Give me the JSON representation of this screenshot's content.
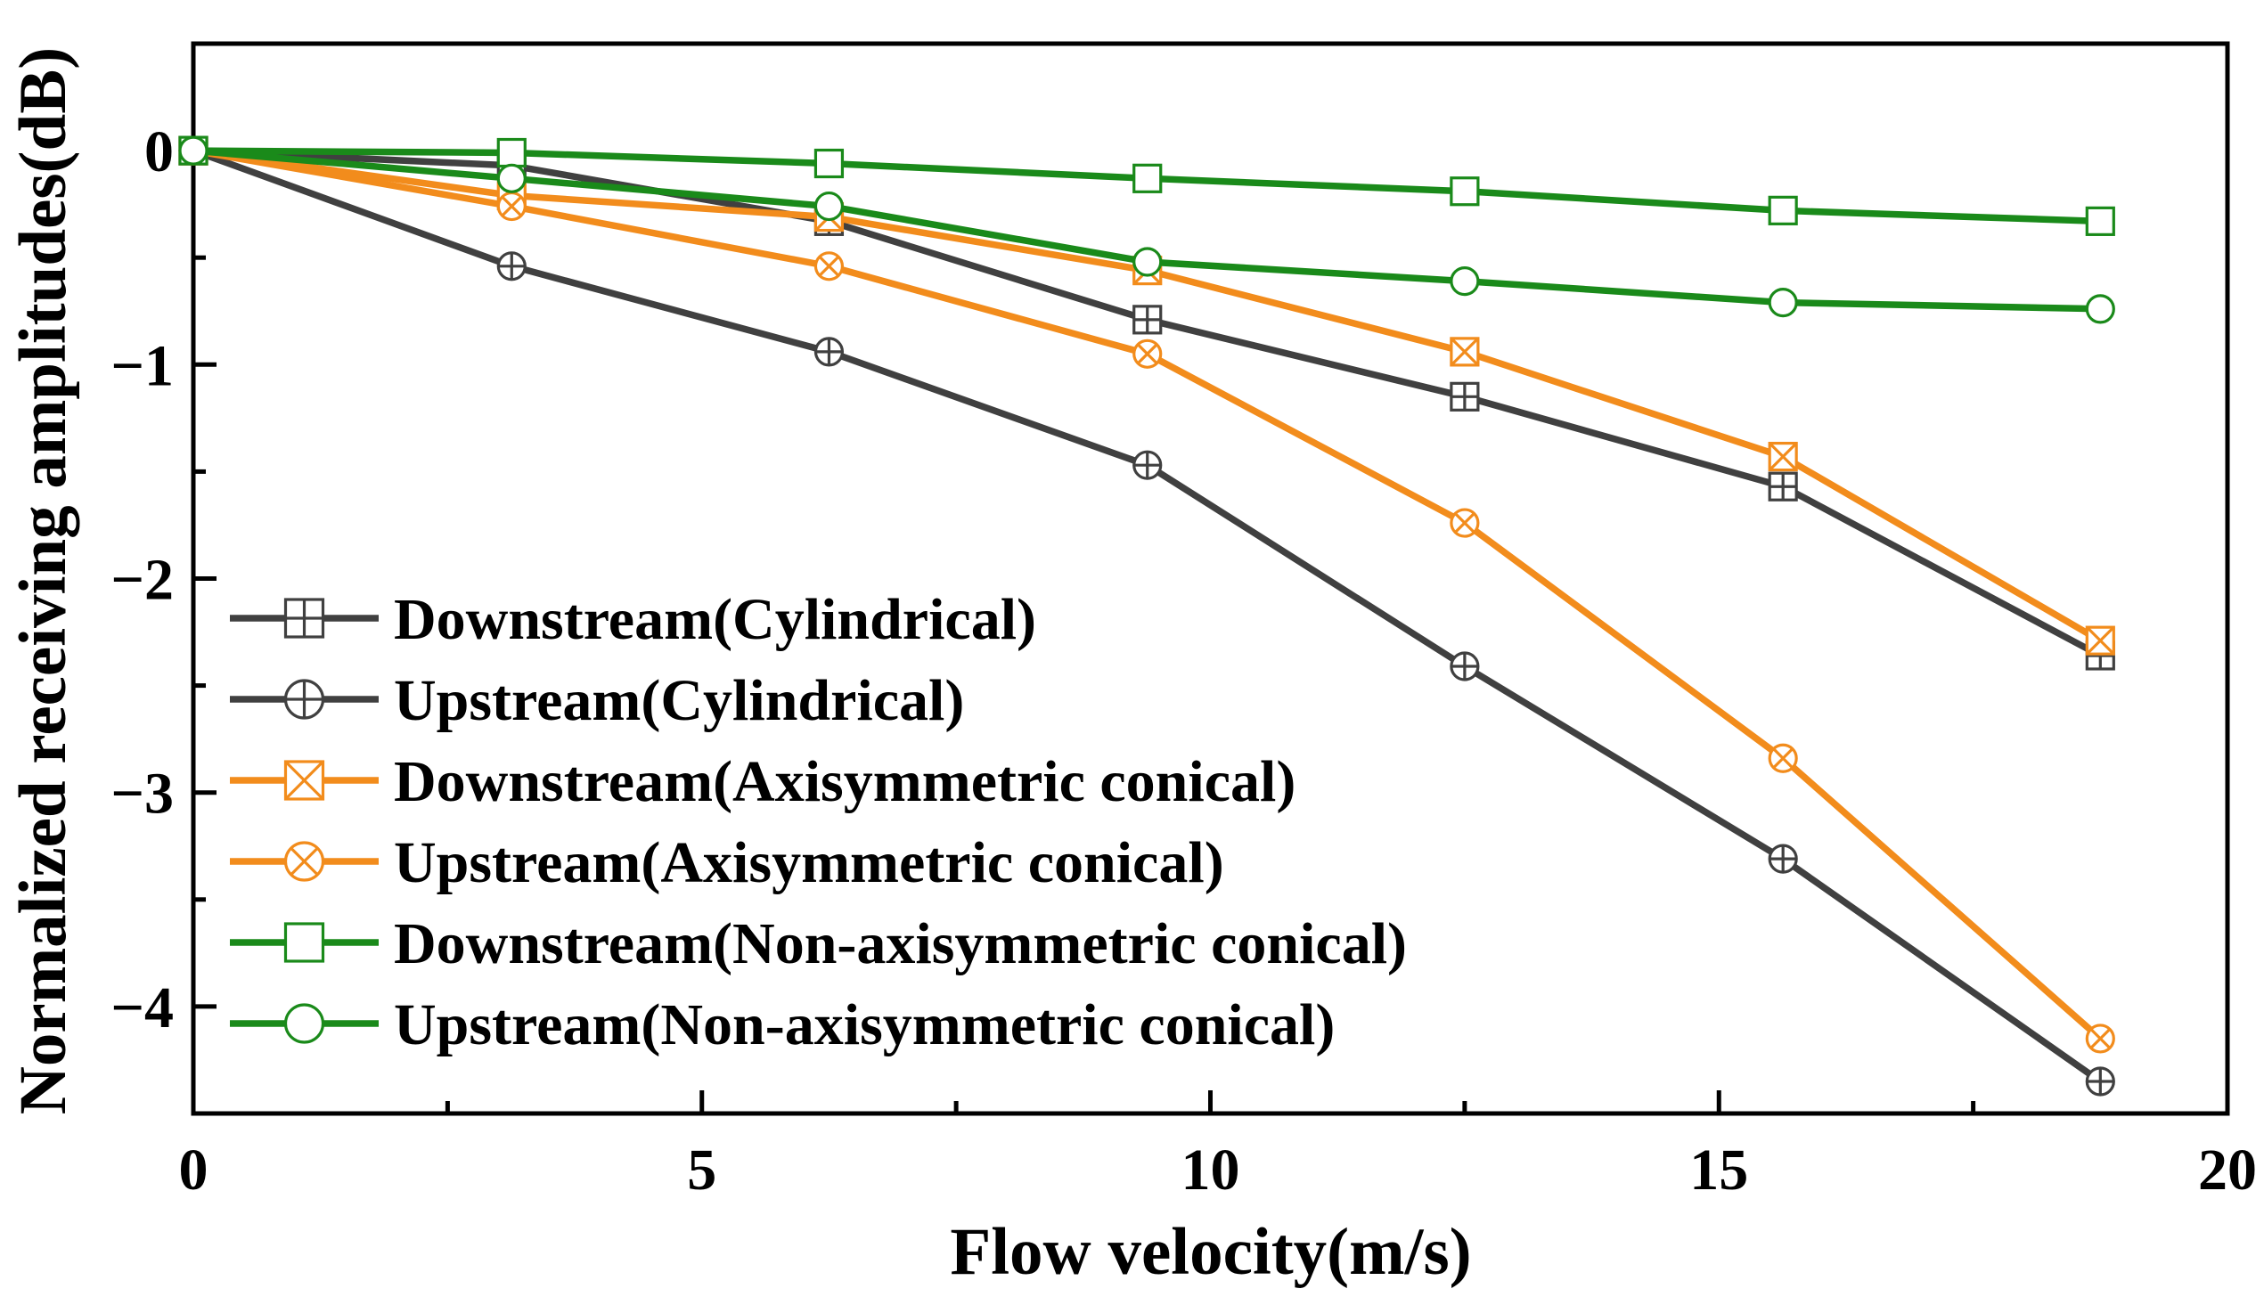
{
  "chart_data": {
    "type": "line",
    "title": "",
    "xlabel": "Flow velocity(m/s)",
    "ylabel": "Normalized receiving amplitudes(dB)",
    "xlim": [
      0,
      20
    ],
    "ylim": [
      -4.5,
      0.5
    ],
    "x_ticks": [
      0,
      5,
      10,
      15,
      20
    ],
    "x_tick_labels": [
      "0",
      "5",
      "10",
      "15",
      "20"
    ],
    "x_minor_ticks": [
      2.5,
      7.5,
      12.5,
      17.5
    ],
    "y_ticks": [
      0,
      -1,
      -2,
      -3,
      -4
    ],
    "y_tick_labels": [
      "0",
      "−1",
      "−2",
      "−3",
      "−4"
    ],
    "y_minor_ticks": [
      -0.5,
      -1.5,
      -2.5,
      -3.5
    ],
    "grid": false,
    "legend_position": "lower-left",
    "x": [
      0,
      3.13,
      6.25,
      9.38,
      12.5,
      15.63,
      18.75
    ],
    "series": [
      {
        "name": "Downstream(Cylindrical)",
        "color": "#404040",
        "marker": "square-plus",
        "values": [
          0,
          -0.07,
          -0.33,
          -0.79,
          -1.15,
          -1.57,
          -2.36
        ]
      },
      {
        "name": "Upstream(Cylindrical)",
        "color": "#404040",
        "marker": "circle-plus",
        "values": [
          0,
          -0.54,
          -0.94,
          -1.47,
          -2.41,
          -3.31,
          -4.35
        ]
      },
      {
        "name": "Downstream(Axisymmetric conical)",
        "color": "#f28c1c",
        "marker": "square-x",
        "values": [
          0,
          -0.21,
          -0.31,
          -0.56,
          -0.94,
          -1.43,
          -2.29
        ]
      },
      {
        "name": "Upstream(Axisymmetric conical)",
        "color": "#f28c1c",
        "marker": "circle-x",
        "values": [
          0,
          -0.26,
          -0.54,
          -0.95,
          -1.74,
          -2.84,
          -4.15
        ]
      },
      {
        "name": "Downstream(Non-axisymmetric conical)",
        "color": "#1a8a1a",
        "marker": "square",
        "values": [
          0,
          -0.01,
          -0.06,
          -0.13,
          -0.19,
          -0.28,
          -0.33
        ]
      },
      {
        "name": "Upstream(Non-axisymmetric conical)",
        "color": "#1a8a1a",
        "marker": "circle",
        "values": [
          0,
          -0.13,
          -0.26,
          -0.52,
          -0.61,
          -0.71,
          -0.74
        ]
      }
    ]
  }
}
